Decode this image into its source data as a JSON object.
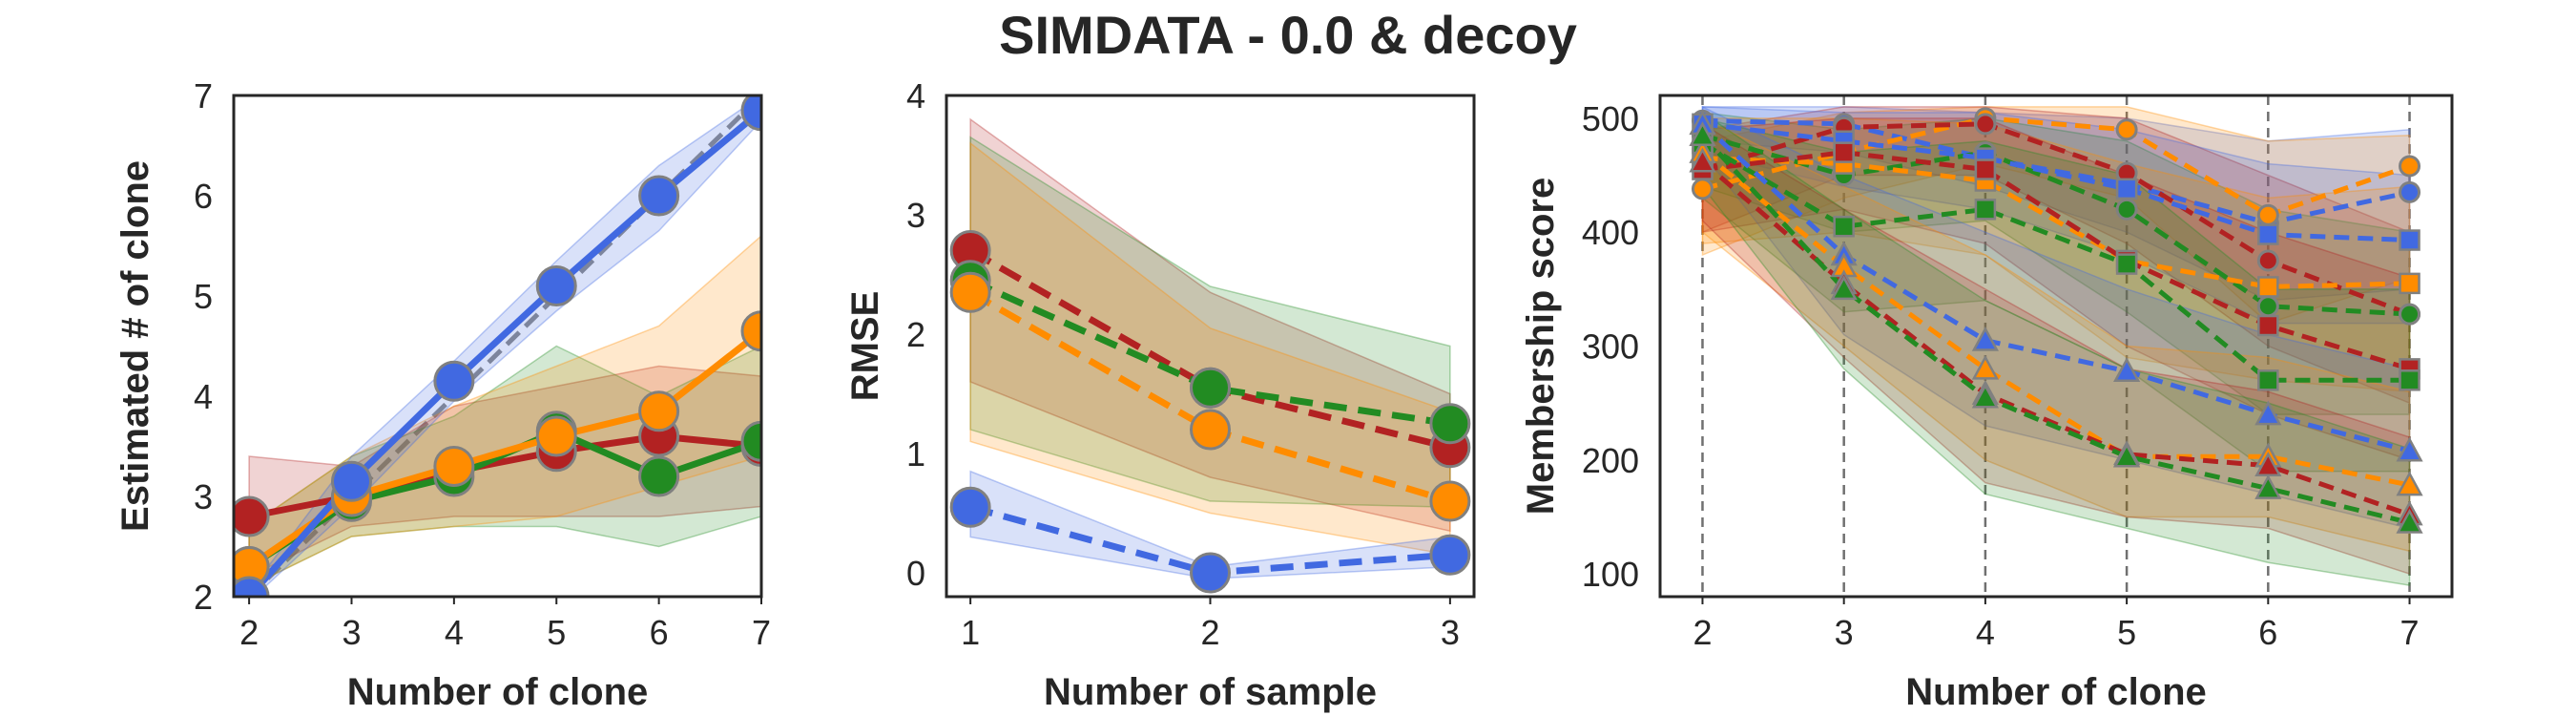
{
  "figure_title": "SIMDATA - 0.0 & decoy",
  "colors": {
    "red": "#b22222",
    "green": "#228b22",
    "orange": "#ff8c00",
    "blue": "#4169e1",
    "marker_edge": "#808080"
  },
  "chart_data": [
    {
      "type": "line",
      "xlabel": "Number of clone",
      "ylabel": "Estimated # of clone",
      "xlim": [
        1.85,
        7.0
      ],
      "ylim": [
        2.0,
        7.0
      ],
      "xticks": [
        "2",
        "3",
        "4",
        "5",
        "6",
        "7"
      ],
      "yticks": [
        "2",
        "3",
        "4",
        "5",
        "6",
        "7"
      ],
      "x": [
        2,
        3,
        4,
        5,
        6,
        7
      ],
      "diagonal_reference": true,
      "series": [
        {
          "color": "red",
          "line": "solid",
          "marker": "circle",
          "values": [
            2.8,
            3.0,
            3.25,
            3.45,
            3.6,
            3.5
          ],
          "band_lower": [
            2.2,
            2.7,
            2.8,
            2.8,
            2.8,
            2.9
          ],
          "band_upper": [
            3.4,
            3.3,
            3.9,
            4.1,
            4.3,
            4.2
          ]
        },
        {
          "color": "green",
          "line": "solid",
          "marker": "circle",
          "values": [
            2.3,
            2.95,
            3.2,
            3.65,
            3.2,
            3.55
          ],
          "band_lower": [
            2.1,
            2.6,
            2.7,
            2.7,
            2.5,
            2.8
          ],
          "band_upper": [
            2.7,
            3.4,
            3.8,
            4.5,
            4.0,
            4.5
          ]
        },
        {
          "color": "orange",
          "line": "solid",
          "marker": "circle",
          "values": [
            2.3,
            3.0,
            3.3,
            3.6,
            3.85,
            4.65
          ],
          "band_lower": [
            2.1,
            2.6,
            2.7,
            2.8,
            3.1,
            3.4
          ],
          "band_upper": [
            2.7,
            3.4,
            3.9,
            4.3,
            4.7,
            5.6
          ]
        },
        {
          "color": "blue",
          "line": "solid",
          "marker": "circle",
          "values": [
            2.0,
            3.15,
            4.15,
            5.1,
            6.0,
            6.85
          ],
          "band_lower": [
            1.95,
            2.9,
            3.95,
            4.85,
            5.65,
            6.75
          ],
          "band_upper": [
            2.05,
            3.4,
            4.35,
            5.35,
            6.3,
            7.0
          ]
        }
      ]
    },
    {
      "type": "line",
      "xlabel": "Number of sample",
      "ylabel": "RMSE",
      "xlim": [
        0.9,
        3.1
      ],
      "ylim": [
        -0.2,
        4.0
      ],
      "xticks": [
        "1",
        "2",
        "3"
      ],
      "yticks": [
        "0",
        "1",
        "2",
        "3",
        "4"
      ],
      "x": [
        1,
        2,
        3
      ],
      "series": [
        {
          "color": "red",
          "line": "dashed",
          "marker": "circle",
          "values": [
            2.7,
            1.55,
            1.05
          ],
          "band_lower": [
            1.6,
            0.8,
            0.35
          ],
          "band_upper": [
            3.8,
            2.35,
            1.5
          ]
        },
        {
          "color": "green",
          "line": "dashed",
          "marker": "circle",
          "values": [
            2.45,
            1.55,
            1.25
          ],
          "band_lower": [
            1.2,
            0.6,
            0.55
          ],
          "band_upper": [
            3.65,
            2.4,
            1.9
          ]
        },
        {
          "color": "orange",
          "line": "dashed",
          "marker": "circle",
          "values": [
            2.35,
            1.2,
            0.6
          ],
          "band_lower": [
            1.1,
            0.5,
            0.15
          ],
          "band_upper": [
            3.6,
            2.05,
            1.35
          ]
        },
        {
          "color": "blue",
          "line": "dashed",
          "marker": "circle",
          "values": [
            0.55,
            0.0,
            0.15
          ],
          "band_lower": [
            0.3,
            -0.05,
            0.05
          ],
          "band_upper": [
            0.85,
            0.05,
            0.3
          ]
        }
      ]
    },
    {
      "type": "line",
      "xlabel": "Number of clone",
      "ylabel": "Membership score",
      "xlim": [
        1.7,
        7.3
      ],
      "ylim": [
        80,
        520
      ],
      "xticks": [
        "2",
        "3",
        "4",
        "5",
        "6",
        "7"
      ],
      "yticks": [
        "100",
        "200",
        "300",
        "400",
        "500"
      ],
      "x": [
        2,
        3,
        4,
        5,
        6,
        7
      ],
      "vertical_dashed_gridlines": true,
      "series": [
        {
          "color": "blue",
          "line": "dashed",
          "marker": "circle",
          "values": [
            498,
            495,
            465,
            442,
            408,
            435
          ],
          "band_lower": [
            480,
            470,
            440,
            400,
            340,
            350
          ],
          "band_upper": [
            510,
            510,
            505,
            500,
            480,
            490
          ]
        },
        {
          "color": "orange",
          "line": "dashed",
          "marker": "circle",
          "values": [
            438,
            470,
            500,
            490,
            415,
            458
          ],
          "band_lower": [
            380,
            430,
            460,
            430,
            320,
            360
          ],
          "band_upper": [
            480,
            505,
            510,
            510,
            480,
            485
          ]
        },
        {
          "color": "red",
          "line": "dashed",
          "marker": "circle",
          "values": [
            455,
            492,
            495,
            452,
            375,
            328
          ],
          "band_lower": [
            400,
            450,
            450,
            390,
            300,
            250
          ],
          "band_upper": [
            490,
            510,
            510,
            500,
            450,
            400
          ]
        },
        {
          "color": "green",
          "line": "dashed",
          "marker": "circle",
          "values": [
            485,
            450,
            470,
            420,
            335,
            328
          ],
          "band_lower": [
            440,
            400,
            410,
            330,
            240,
            240
          ],
          "band_upper": [
            505,
            490,
            500,
            480,
            420,
            400
          ]
        },
        {
          "color": "blue",
          "line": "dashed",
          "marker": "square",
          "values": [
            495,
            480,
            465,
            438,
            398,
            393
          ],
          "band_lower": [
            470,
            440,
            420,
            380,
            320,
            320
          ],
          "band_upper": [
            510,
            505,
            505,
            490,
            460,
            450
          ]
        },
        {
          "color": "orange",
          "line": "dashed",
          "marker": "square",
          "values": [
            465,
            460,
            445,
            375,
            352,
            355
          ],
          "band_lower": [
            390,
            400,
            380,
            290,
            270,
            260
          ],
          "band_upper": [
            500,
            500,
            495,
            460,
            430,
            440
          ]
        },
        {
          "color": "red",
          "line": "dashed",
          "marker": "square",
          "values": [
            455,
            470,
            455,
            375,
            318,
            280
          ],
          "band_lower": [
            400,
            420,
            390,
            300,
            240,
            200
          ],
          "band_upper": [
            490,
            500,
            500,
            450,
            400,
            360
          ]
        },
        {
          "color": "green",
          "line": "dashed",
          "marker": "square",
          "values": [
            478,
            405,
            420,
            372,
            270,
            270
          ],
          "band_lower": [
            430,
            330,
            340,
            280,
            190,
            190
          ],
          "band_upper": [
            500,
            470,
            480,
            450,
            350,
            350
          ]
        },
        {
          "color": "blue",
          "line": "dashed",
          "marker": "triangle",
          "values": [
            495,
            380,
            305,
            278,
            240,
            208
          ],
          "band_lower": [
            470,
            310,
            230,
            200,
            170,
            140
          ],
          "band_upper": [
            510,
            450,
            400,
            350,
            310,
            280
          ]
        },
        {
          "color": "orange",
          "line": "dashed",
          "marker": "triangle",
          "values": [
            470,
            370,
            280,
            203,
            203,
            178
          ],
          "band_lower": [
            400,
            300,
            200,
            150,
            150,
            120
          ],
          "band_upper": [
            500,
            440,
            380,
            300,
            290,
            260
          ]
        },
        {
          "color": "red",
          "line": "dashed",
          "marker": "triangle",
          "values": [
            462,
            355,
            258,
            205,
            195,
            152
          ],
          "band_lower": [
            410,
            290,
            180,
            150,
            140,
            100
          ],
          "band_upper": [
            495,
            420,
            350,
            280,
            260,
            220
          ]
        },
        {
          "color": "green",
          "line": "dashed",
          "marker": "triangle",
          "values": [
            485,
            350,
            255,
            203,
            175,
            145
          ],
          "band_lower": [
            440,
            280,
            170,
            140,
            110,
            90
          ],
          "band_upper": [
            505,
            420,
            340,
            280,
            250,
            210
          ]
        }
      ]
    }
  ]
}
